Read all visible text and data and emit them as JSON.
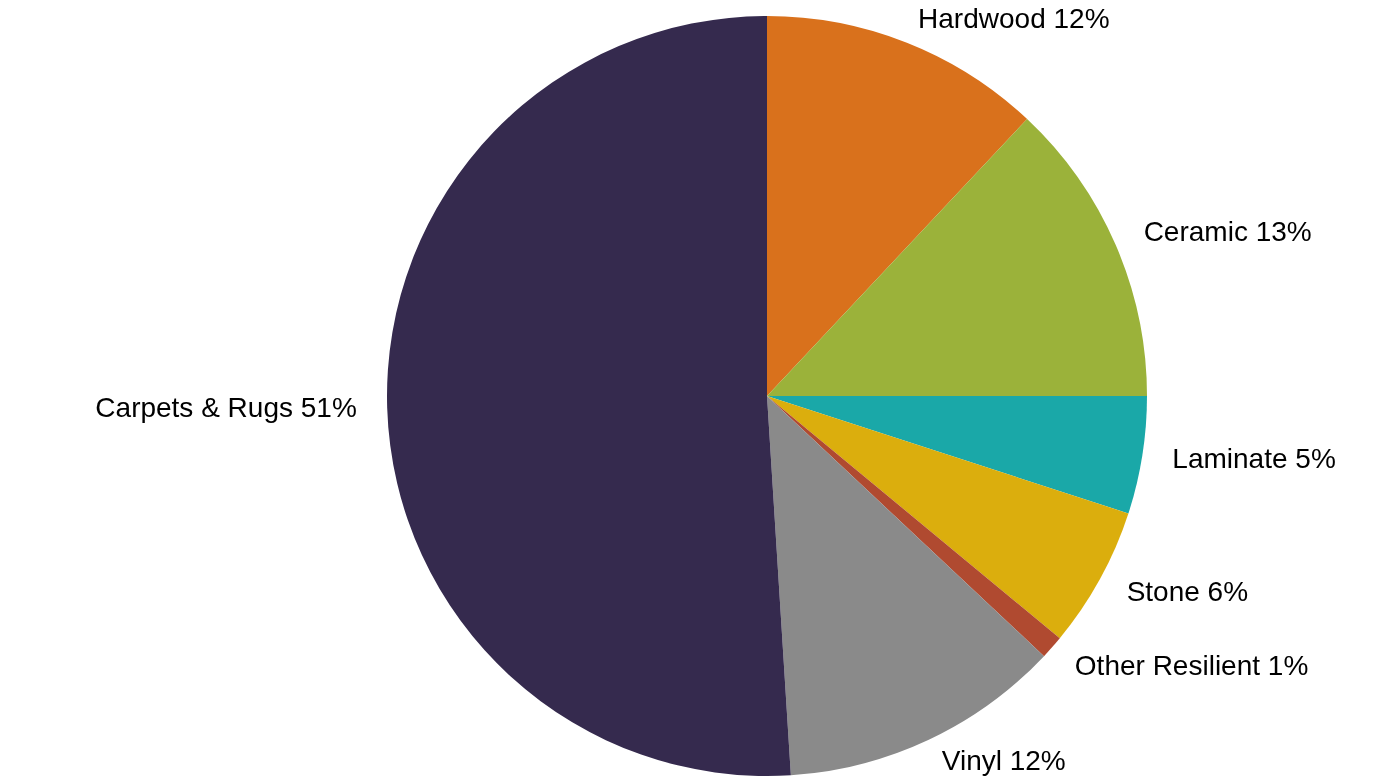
{
  "chart_data": {
    "type": "pie",
    "categories": [
      "Hardwood",
      "Ceramic",
      "Laminate",
      "Stone",
      "Other Resilient",
      "Vinyl",
      "Carpets & Rugs"
    ],
    "values": [
      12,
      13,
      5,
      6,
      1,
      12,
      51
    ],
    "value_labels": [
      "12%",
      "13%",
      "5%",
      "6%",
      "1%",
      "12%",
      "51%"
    ],
    "colors": [
      "#d9711c",
      "#9bb23a",
      "#1aa8a8",
      "#dbae0d",
      "#b04a30",
      "#8a8a8a",
      "#352a4e"
    ],
    "legend": false
  }
}
